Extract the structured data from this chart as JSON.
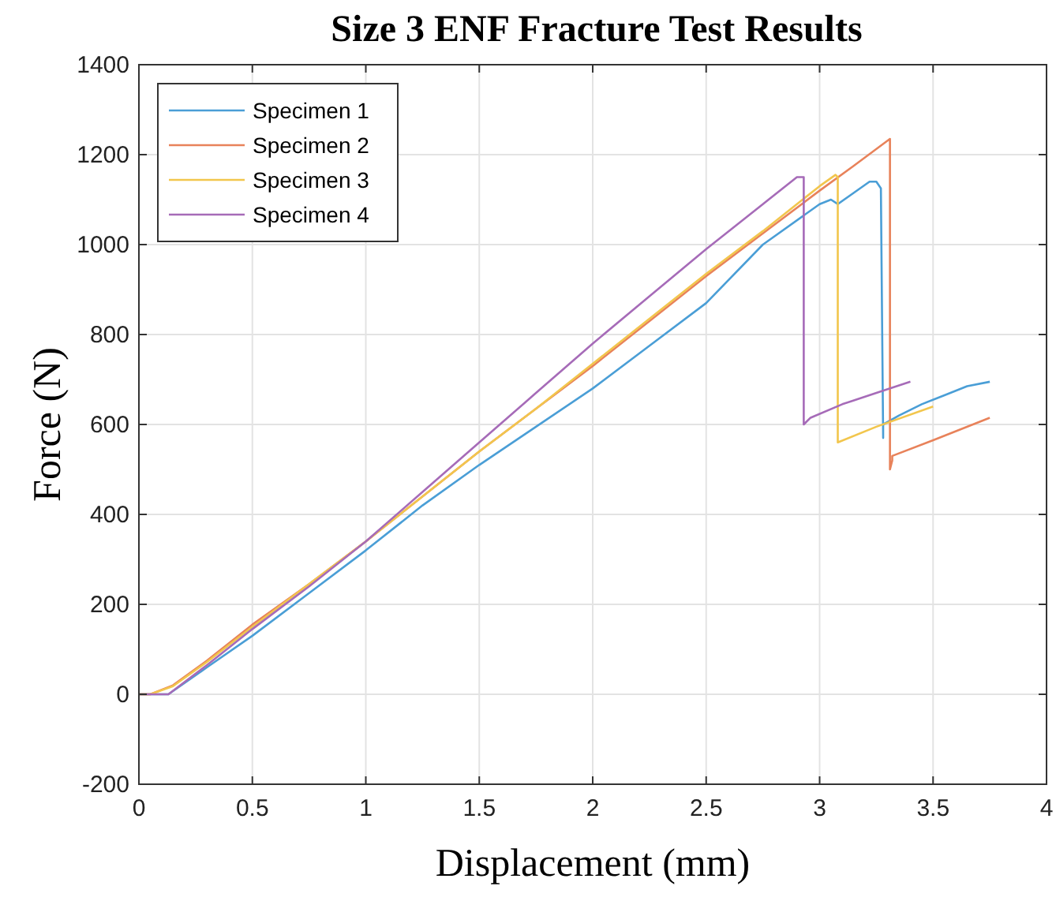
{
  "chart_data": {
    "type": "line",
    "title": "Size 3 ENF Fracture Test Results",
    "xlabel": "Displacement (mm)",
    "ylabel": "Force (N)",
    "xlim": [
      0,
      4
    ],
    "xticks": [
      0,
      0.5,
      1,
      1.5,
      2,
      2.5,
      3,
      3.5,
      4
    ],
    "ylim": [
      -200,
      1400
    ],
    "yticks": [
      -200,
      0,
      200,
      400,
      600,
      800,
      1000,
      1200,
      1400
    ],
    "grid": true,
    "legend": "top left",
    "series": [
      {
        "name": "Specimen 1",
        "color": "#4a9ed6",
        "x": [
          0,
          0.13,
          0.3,
          0.5,
          0.75,
          1,
          1.25,
          1.5,
          1.75,
          2,
          2.25,
          2.5,
          2.75,
          3,
          3.05,
          3.08,
          3.15,
          3.22,
          3.25,
          3.27,
          3.28,
          3.28,
          3.35,
          3.45,
          3.55,
          3.65,
          3.75
        ],
        "values": [
          0,
          0,
          60,
          130,
          225,
          320,
          420,
          510,
          595,
          680,
          775,
          870,
          1000,
          1090,
          1100,
          1090,
          1115,
          1140,
          1140,
          1125,
          570,
          600,
          620,
          645,
          665,
          685,
          695
        ]
      },
      {
        "name": "Specimen 2",
        "color": "#e8825a",
        "x": [
          0,
          0.05,
          0.15,
          0.3,
          0.5,
          0.75,
          1,
          1.25,
          1.5,
          1.75,
          2,
          2.25,
          2.5,
          2.75,
          3,
          3.15,
          3.31,
          3.31,
          3.32,
          3.32,
          3.5,
          3.75
        ],
        "values": [
          0,
          0,
          20,
          75,
          155,
          245,
          340,
          440,
          540,
          635,
          730,
          830,
          930,
          1025,
          1120,
          1175,
          1235,
          500,
          520,
          530,
          565,
          615
        ]
      },
      {
        "name": "Specimen 3",
        "color": "#f2c64d",
        "x": [
          0,
          0.05,
          0.15,
          0.3,
          0.5,
          0.75,
          1,
          1.25,
          1.5,
          1.75,
          2,
          2.25,
          2.5,
          2.75,
          3,
          3.07,
          3.08,
          3.08,
          3.25,
          3.5
        ],
        "values": [
          0,
          0,
          18,
          72,
          150,
          245,
          340,
          440,
          540,
          635,
          735,
          835,
          935,
          1030,
          1130,
          1155,
          1150,
          560,
          595,
          640
        ]
      },
      {
        "name": "Specimen 4",
        "color": "#a66bb8",
        "x": [
          0,
          0.13,
          0.3,
          0.5,
          0.75,
          1,
          1.25,
          1.5,
          1.75,
          2,
          2.25,
          2.5,
          2.75,
          2.9,
          2.93,
          2.93,
          2.96,
          3.1,
          3.25,
          3.4
        ],
        "values": [
          0,
          0,
          65,
          145,
          240,
          340,
          450,
          560,
          670,
          780,
          885,
          990,
          1090,
          1150,
          1150,
          600,
          615,
          645,
          670,
          695
        ]
      }
    ]
  }
}
